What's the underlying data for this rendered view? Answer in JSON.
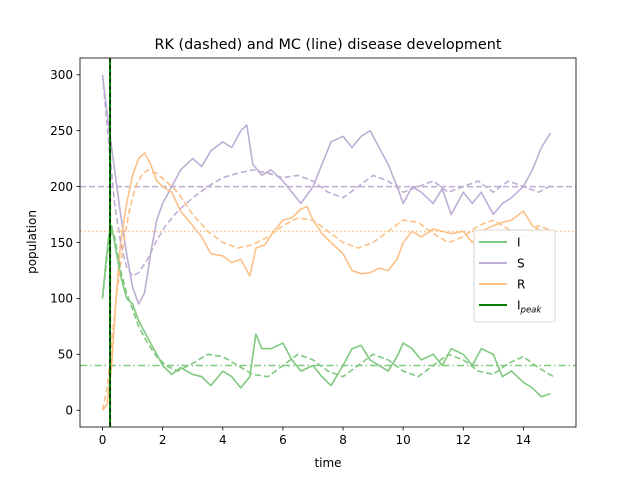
{
  "chart_data": {
    "type": "line",
    "title": "RK (dashed) and MC (line) disease development",
    "xlabel": "time",
    "ylabel": "population",
    "xlim": [
      -0.75,
      15.75
    ],
    "ylim": [
      -15,
      315
    ],
    "xticks": [
      0,
      2,
      4,
      6,
      8,
      10,
      12,
      14
    ],
    "yticks": [
      0,
      50,
      100,
      150,
      200,
      250,
      300
    ],
    "legend_position": "center-right",
    "legend": [
      {
        "label": "I",
        "sub": "",
        "color": "#7fc97f",
        "key": "I"
      },
      {
        "label": "S",
        "sub": "",
        "color": "#beaed4",
        "key": "S"
      },
      {
        "label": "R",
        "sub": "",
        "color": "#fdc086",
        "key": "R"
      },
      {
        "label": "I",
        "sub": "peak",
        "color": "#008000",
        "key": "Ipeak"
      }
    ],
    "equilibrium_lines": {
      "S": {
        "value": 200,
        "color": "#beaed4",
        "style": "dashed"
      },
      "R": {
        "value": 160,
        "color": "#fdc086",
        "style": "dotted"
      },
      "I": {
        "value": 40,
        "color": "#7fc97f",
        "style": "dashdot"
      }
    },
    "peak_line": {
      "x": 0.25,
      "color": "#008000"
    },
    "series": [
      {
        "name": "S",
        "method": "MC",
        "color": "#beaed4",
        "style": "solid",
        "x": [
          0,
          0.2,
          0.4,
          0.6,
          0.8,
          1.0,
          1.2,
          1.4,
          1.6,
          1.8,
          2.0,
          2.3,
          2.6,
          3.0,
          3.3,
          3.6,
          4.0,
          4.3,
          4.6,
          4.8,
          5.0,
          5.3,
          5.6,
          6.0,
          6.3,
          6.6,
          7.0,
          7.3,
          7.6,
          8.0,
          8.3,
          8.6,
          8.9,
          9.2,
          9.5,
          9.8,
          10.0,
          10.3,
          10.6,
          11.0,
          11.3,
          11.6,
          12.0,
          12.3,
          12.6,
          13.0,
          13.3,
          13.6,
          14.0,
          14.3,
          14.6,
          14.9
        ],
        "values": [
          300,
          255,
          215,
          175,
          140,
          110,
          95,
          105,
          140,
          170,
          185,
          200,
          215,
          225,
          218,
          232,
          240,
          235,
          250,
          255,
          220,
          210,
          215,
          205,
          195,
          185,
          200,
          220,
          240,
          245,
          235,
          245,
          250,
          235,
          220,
          200,
          185,
          200,
          195,
          185,
          198,
          175,
          195,
          185,
          195,
          175,
          185,
          190,
          200,
          215,
          235,
          248
        ]
      },
      {
        "name": "R",
        "method": "MC",
        "color": "#fdc086",
        "style": "solid",
        "x": [
          0,
          0.15,
          0.3,
          0.45,
          0.6,
          0.8,
          1.0,
          1.2,
          1.4,
          1.6,
          1.8,
          2.0,
          2.3,
          2.6,
          3.0,
          3.3,
          3.6,
          4.0,
          4.3,
          4.6,
          4.9,
          5.1,
          5.4,
          5.7,
          6.0,
          6.3,
          6.6,
          6.8,
          7.0,
          7.3,
          7.6,
          8.0,
          8.3,
          8.6,
          8.9,
          9.2,
          9.5,
          9.8,
          10.0,
          10.3,
          10.6,
          11.0,
          11.3,
          11.6,
          12.0,
          12.3,
          12.6,
          13.0,
          13.3,
          13.6,
          14.0,
          14.3,
          14.6,
          14.9
        ],
        "values": [
          0,
          5,
          40,
          100,
          150,
          185,
          210,
          225,
          230,
          220,
          205,
          200,
          195,
          178,
          165,
          155,
          140,
          138,
          132,
          135,
          120,
          145,
          148,
          160,
          170,
          172,
          180,
          182,
          170,
          158,
          150,
          140,
          125,
          122,
          123,
          127,
          125,
          135,
          150,
          160,
          155,
          162,
          160,
          158,
          160,
          150,
          160,
          165,
          168,
          170,
          178,
          165,
          160,
          155
        ]
      },
      {
        "name": "I",
        "method": "MC",
        "color": "#7fc97f",
        "style": "solid",
        "x": [
          0,
          0.1,
          0.2,
          0.3,
          0.4,
          0.5,
          0.6,
          0.8,
          1.0,
          1.2,
          1.4,
          1.6,
          1.8,
          2.0,
          2.3,
          2.6,
          3.0,
          3.3,
          3.6,
          4.0,
          4.3,
          4.6,
          4.9,
          5.1,
          5.3,
          5.6,
          6.0,
          6.3,
          6.6,
          7.0,
          7.3,
          7.6,
          8.0,
          8.3,
          8.6,
          8.9,
          9.2,
          9.5,
          9.8,
          10.0,
          10.3,
          10.6,
          11.0,
          11.3,
          11.6,
          12.0,
          12.3,
          12.6,
          13.0,
          13.3,
          13.6,
          14.0,
          14.3,
          14.6,
          14.9
        ],
        "values": [
          100,
          130,
          155,
          165,
          150,
          135,
          120,
          100,
          95,
          80,
          70,
          60,
          50,
          40,
          32,
          38,
          32,
          30,
          22,
          35,
          30,
          20,
          30,
          68,
          55,
          55,
          60,
          45,
          35,
          40,
          30,
          22,
          40,
          55,
          58,
          45,
          40,
          35,
          48,
          60,
          55,
          45,
          50,
          40,
          55,
          50,
          40,
          55,
          50,
          30,
          35,
          25,
          20,
          12,
          15
        ]
      },
      {
        "name": "S",
        "method": "RK",
        "color": "#beaed4",
        "style": "dashed",
        "x": [
          0,
          0.2,
          0.4,
          0.6,
          0.8,
          1.0,
          1.2,
          1.5,
          1.8,
          2.1,
          2.5,
          3.0,
          3.5,
          4.0,
          4.5,
          5.0,
          5.5,
          6.0,
          6.5,
          7.0,
          7.5,
          8.0,
          8.5,
          9.0,
          9.5,
          10.0,
          10.5,
          11.0,
          11.5,
          12.0,
          12.5,
          13.0,
          13.5,
          14.0,
          14.5,
          15.0
        ],
        "values": [
          300,
          240,
          185,
          150,
          128,
          120,
          123,
          135,
          152,
          165,
          178,
          190,
          200,
          208,
          212,
          215,
          212,
          208,
          210,
          205,
          195,
          190,
          200,
          210,
          205,
          195,
          200,
          205,
          195,
          200,
          205,
          195,
          205,
          200,
          195,
          202
        ]
      },
      {
        "name": "R",
        "method": "RK",
        "color": "#fdc086",
        "style": "dashed",
        "x": [
          0,
          0.15,
          0.3,
          0.5,
          0.7,
          0.9,
          1.1,
          1.3,
          1.5,
          1.8,
          2.1,
          2.5,
          3.0,
          3.5,
          4.0,
          4.5,
          5.0,
          5.5,
          6.0,
          6.5,
          7.0,
          7.5,
          8.0,
          8.5,
          9.0,
          9.5,
          10.0,
          10.5,
          11.0,
          11.5,
          12.0,
          12.5,
          13.0,
          13.5,
          14.0,
          14.5,
          15.0
        ],
        "values": [
          0,
          20,
          60,
          110,
          150,
          180,
          200,
          210,
          215,
          212,
          205,
          195,
          175,
          160,
          150,
          145,
          148,
          155,
          165,
          172,
          170,
          160,
          150,
          145,
          150,
          160,
          170,
          168,
          158,
          150,
          155,
          165,
          170,
          162,
          155,
          165,
          160
        ]
      },
      {
        "name": "I",
        "method": "RK",
        "color": "#7fc97f",
        "style": "dashed",
        "x": [
          0,
          0.1,
          0.2,
          0.3,
          0.4,
          0.5,
          0.6,
          0.8,
          1.0,
          1.2,
          1.5,
          1.8,
          2.1,
          2.5,
          3.0,
          3.5,
          4.0,
          4.5,
          5.0,
          5.5,
          6.0,
          6.5,
          7.0,
          7.5,
          8.0,
          8.5,
          9.0,
          9.5,
          10.0,
          10.5,
          11.0,
          11.5,
          12.0,
          12.5,
          13.0,
          13.5,
          14.0,
          14.5,
          15.0
        ],
        "values": [
          100,
          125,
          150,
          160,
          155,
          140,
          125,
          105,
          90,
          75,
          60,
          48,
          40,
          35,
          42,
          50,
          48,
          40,
          32,
          30,
          40,
          50,
          45,
          35,
          30,
          40,
          50,
          45,
          35,
          30,
          40,
          50,
          45,
          35,
          32,
          42,
          48,
          38,
          30
        ]
      }
    ]
  }
}
